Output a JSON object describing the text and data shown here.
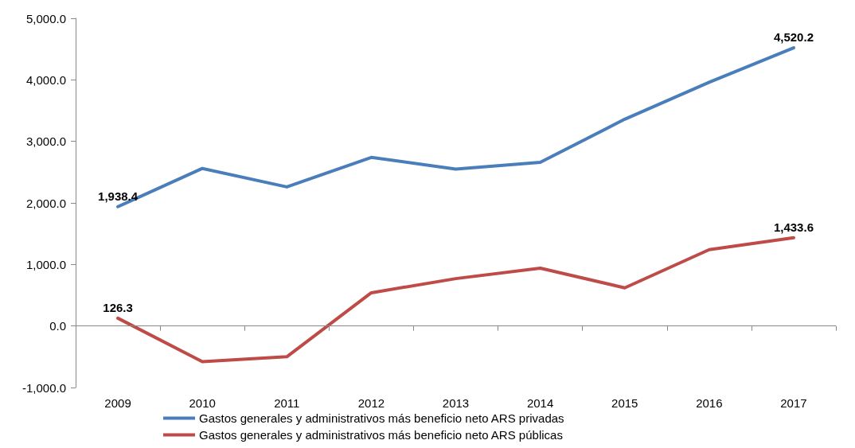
{
  "chart_data": {
    "type": "line",
    "categories": [
      "2009",
      "2010",
      "2011",
      "2012",
      "2013",
      "2014",
      "2015",
      "2016",
      "2017"
    ],
    "series": [
      {
        "name": "Gastos generales y administrativos más beneficio neto ARS privadas",
        "color": "#4a7ebb",
        "values": [
          1938.4,
          2560,
          2260,
          2740,
          2550,
          2660,
          3360,
          3960,
          4520.2
        ],
        "value_labels": [
          "1,938.4",
          null,
          null,
          null,
          null,
          null,
          null,
          null,
          "4,520.2"
        ]
      },
      {
        "name": "Gastos generales y administrativos más beneficio neto ARS públicas",
        "color": "#be4b48",
        "values": [
          126.3,
          -580,
          -500,
          540,
          770,
          940,
          620,
          1240,
          1433.6
        ],
        "value_labels": [
          "126.3",
          null,
          null,
          null,
          null,
          null,
          null,
          null,
          "1,433.6"
        ]
      }
    ],
    "ylim": [
      -1000,
      5000
    ],
    "yticks": [
      {
        "value": -1000,
        "label": "-1,000.0"
      },
      {
        "value": 0,
        "label": "0.0"
      },
      {
        "value": 1000,
        "label": "1,000.0"
      },
      {
        "value": 2000,
        "label": "2,000.0"
      },
      {
        "value": 3000,
        "label": "3,000.0"
      },
      {
        "value": 4000,
        "label": "4,000.0"
      },
      {
        "value": 5000,
        "label": "5,000.0"
      }
    ],
    "ref_lines": [
      {
        "axis": "y",
        "value": 0,
        "color": "#888888",
        "line_style": "solid"
      }
    ],
    "grid": false,
    "legend": "bottom",
    "marker": "none",
    "line_style": "solid"
  }
}
